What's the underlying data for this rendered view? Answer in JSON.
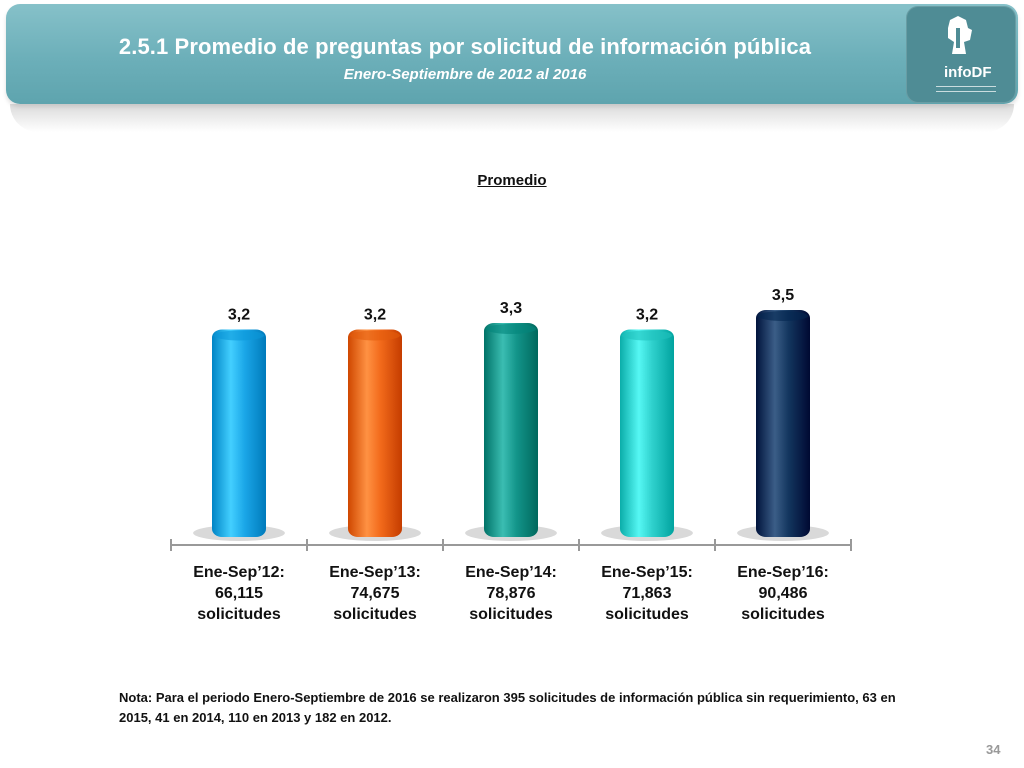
{
  "header": {
    "title": "2.5.1 Promedio de preguntas por solicitud de información pública",
    "subtitle": "Enero-Septiembre de 2012 al 2016",
    "logo_text": "infoDF"
  },
  "chart_data": {
    "type": "bar",
    "title": "Promedio",
    "categories": [
      "Ene-Sep’12:",
      "Ene-Sep’13:",
      "Ene-Sep’14:",
      "Ene-Sep’15:",
      "Ene-Sep’16:"
    ],
    "solicitudes": [
      "66,115",
      "74,675",
      "78,876",
      "71,863",
      "90,486"
    ],
    "solicitudes_label": "solicitudes",
    "values": [
      3.2,
      3.2,
      3.3,
      3.2,
      3.5
    ],
    "value_labels": [
      "3,2",
      "3,2",
      "3,3",
      "3,2",
      "3,5"
    ],
    "colors": [
      "#1ba7e8",
      "#f26a1b",
      "#13958a",
      "#2ed0cc",
      "#13365f"
    ],
    "ylim": [
      0,
      3.5
    ],
    "grid": false,
    "xlabel": "",
    "ylabel": ""
  },
  "note": "Nota: Para el periodo Enero-Septiembre de 2016 se realizaron 395 solicitudes de información pública sin requerimiento, 63 en 2015, 41 en 2014, 110 en 2013 y 182 en 2012.",
  "page_number": "34"
}
